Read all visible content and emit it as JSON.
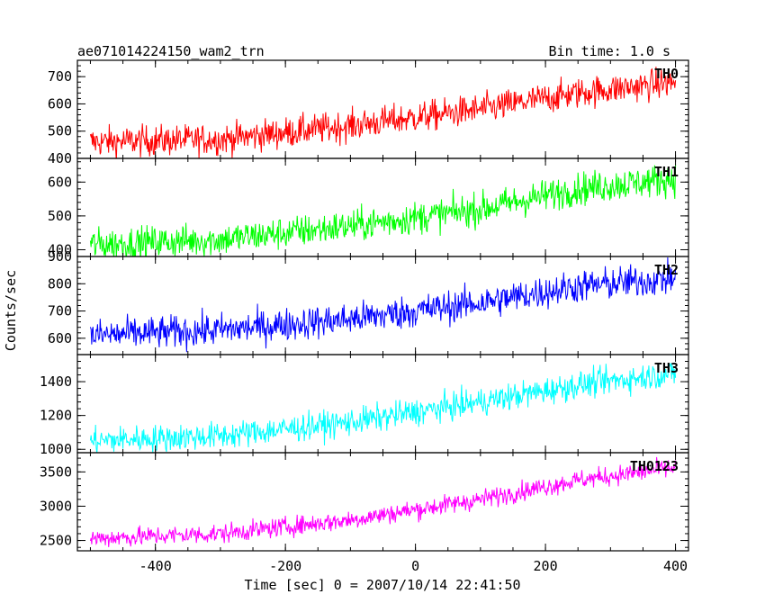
{
  "header": {
    "title": "ae071014224150_wam2_trn",
    "bin_time": "Bin time: 1.0 s"
  },
  "chart_data": {
    "type": "line",
    "xlabel": "Time [sec] 0 = 2007/10/14 22:41:50",
    "ylabel": "Counts/sec",
    "xlim": [
      -520,
      420
    ],
    "x_ticks": [
      -400,
      -200,
      0,
      200,
      400
    ],
    "x_range": [
      -500,
      400
    ],
    "bin_time_s": 1.0,
    "panels": [
      {
        "name": "TH0",
        "color": "#ff0000",
        "ylim": [
          400,
          760
        ],
        "y_ticks": [
          400,
          500,
          600,
          700
        ],
        "trend": [
          [
            -500,
            460
          ],
          [
            -300,
            470
          ],
          [
            -100,
            520
          ],
          [
            100,
            580
          ],
          [
            250,
            640
          ],
          [
            400,
            680
          ]
        ],
        "noise": 28
      },
      {
        "name": "TH1",
        "color": "#00ff00",
        "ylim": [
          380,
          670
        ],
        "y_ticks": [
          400,
          500,
          600
        ],
        "trend": [
          [
            -500,
            415
          ],
          [
            -300,
            430
          ],
          [
            -100,
            470
          ],
          [
            100,
            520
          ],
          [
            250,
            580
          ],
          [
            400,
            610
          ]
        ],
        "noise": 24
      },
      {
        "name": "TH2",
        "color": "#0000ff",
        "ylim": [
          540,
          900
        ],
        "y_ticks": [
          600,
          700,
          800,
          900
        ],
        "trend": [
          [
            -500,
            610
          ],
          [
            -300,
            630
          ],
          [
            -100,
            670
          ],
          [
            100,
            730
          ],
          [
            250,
            790
          ],
          [
            400,
            820
          ]
        ],
        "noise": 30
      },
      {
        "name": "TH3",
        "color": "#00ffff",
        "ylim": [
          980,
          1560
        ],
        "y_ticks": [
          1000,
          1200,
          1400
        ],
        "trend": [
          [
            -500,
            1050
          ],
          [
            -300,
            1080
          ],
          [
            -100,
            1160
          ],
          [
            100,
            1280
          ],
          [
            250,
            1380
          ],
          [
            400,
            1450
          ]
        ],
        "noise": 40
      },
      {
        "name": "TH0123",
        "color": "#ff00ff",
        "ylim": [
          2350,
          3780
        ],
        "y_ticks": [
          2500,
          3000,
          3500
        ],
        "trend": [
          [
            -500,
            2530
          ],
          [
            -300,
            2600
          ],
          [
            -100,
            2800
          ],
          [
            100,
            3100
          ],
          [
            250,
            3380
          ],
          [
            400,
            3560
          ]
        ],
        "noise": 70
      }
    ]
  }
}
